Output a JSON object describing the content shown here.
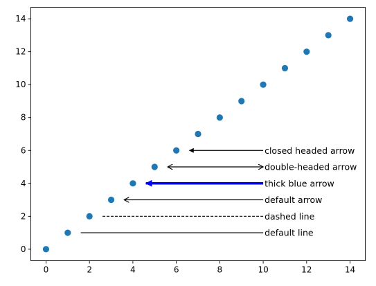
{
  "chart_data": {
    "type": "scatter",
    "title": "",
    "xlabel": "",
    "ylabel": "",
    "xlim": [
      -0.7,
      14.7
    ],
    "ylim": [
      -0.7,
      14.7
    ],
    "x_ticks": [
      0,
      2,
      4,
      6,
      8,
      10,
      12,
      14
    ],
    "y_ticks": [
      0,
      2,
      4,
      6,
      8,
      10,
      12,
      14
    ],
    "grid": false,
    "legend": "none",
    "series": [
      {
        "x": [
          0,
          1,
          2,
          3,
          4,
          5,
          6,
          7,
          8,
          9,
          10,
          11,
          12,
          13,
          14
        ],
        "y": [
          0,
          1,
          2,
          3,
          4,
          5,
          6,
          7,
          8,
          9,
          10,
          11,
          12,
          13,
          14
        ],
        "color": "#1f77b4"
      }
    ],
    "annotations": [
      {
        "text": "closed headed arrow",
        "text_xy": [
          10,
          6
        ],
        "line_from": [
          10,
          6
        ],
        "line_to": [
          6.6,
          6
        ],
        "style": "closed-head",
        "color": "#000000",
        "dashed": false
      },
      {
        "text": "double-headed arrow",
        "text_xy": [
          10,
          5
        ],
        "line_from": [
          10,
          5
        ],
        "line_to": [
          5.6,
          5
        ],
        "style": "double",
        "color": "#000000",
        "dashed": false
      },
      {
        "text": "thick blue arrow",
        "text_xy": [
          10,
          4
        ],
        "line_from": [
          10,
          4
        ],
        "line_to": [
          4.6,
          4
        ],
        "style": "thick",
        "color": "#0000ff",
        "dashed": false
      },
      {
        "text": "default arrow",
        "text_xy": [
          10,
          3
        ],
        "line_from": [
          10,
          3
        ],
        "line_to": [
          3.6,
          3
        ],
        "style": "open-head",
        "color": "#000000",
        "dashed": false
      },
      {
        "text": "dashed line",
        "text_xy": [
          10,
          2
        ],
        "line_from": [
          10,
          2
        ],
        "line_to": [
          2.6,
          2
        ],
        "style": "none",
        "color": "#000000",
        "dashed": true
      },
      {
        "text": "default line",
        "text_xy": [
          10,
          1
        ],
        "line_from": [
          10,
          1
        ],
        "line_to": [
          1.6,
          1
        ],
        "style": "none",
        "color": "#000000",
        "dashed": false
      }
    ]
  }
}
